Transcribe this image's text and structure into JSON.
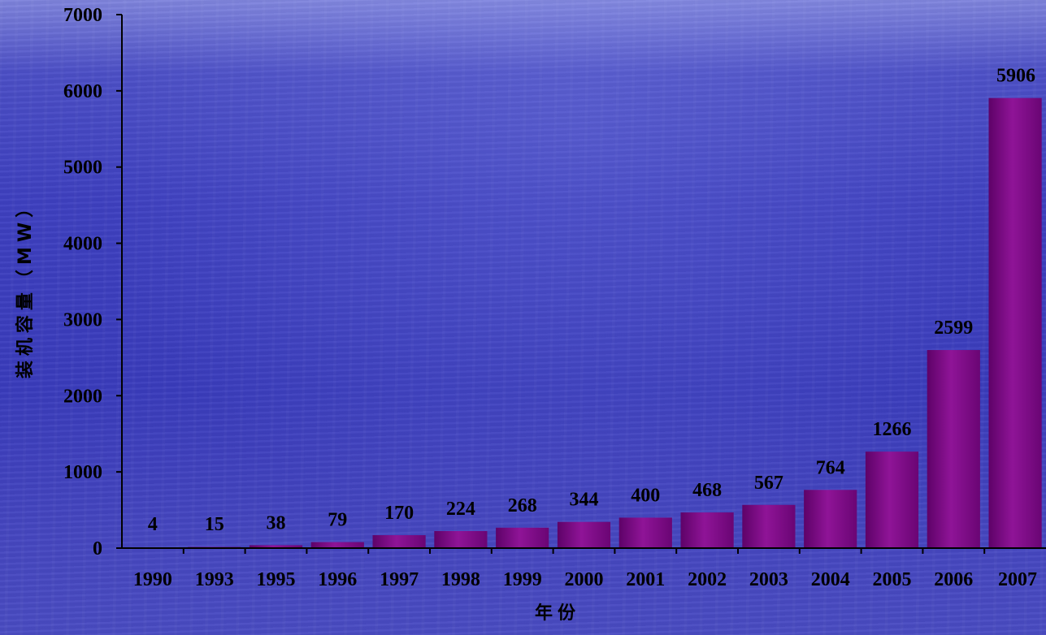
{
  "chart_data": {
    "type": "bar",
    "categories": [
      "1990",
      "1993",
      "1995",
      "1996",
      "1997",
      "1998",
      "1999",
      "2000",
      "2001",
      "2002",
      "2003",
      "2004",
      "2005",
      "2006",
      "2007"
    ],
    "values": [
      4,
      15,
      38,
      79,
      170,
      224,
      268,
      344,
      400,
      468,
      567,
      764,
      1266,
      2599,
      5906
    ],
    "data_labels": [
      "4",
      "15",
      "38",
      "79",
      "170",
      "224",
      "268",
      "344",
      "400",
      "468",
      "567",
      "764",
      "1266",
      "2599",
      "5906"
    ],
    "title": "",
    "xlabel": "年份",
    "ylabel": "装机容量（MW）",
    "ylim": [
      0,
      7000
    ],
    "yticks": [
      "0",
      "1000",
      "2000",
      "3000",
      "4000",
      "5000",
      "6000",
      "7000"
    ],
    "grid": false,
    "bar_color": "#7a0a82",
    "bar_color_light": "#a020a8",
    "axis_color": "#000000"
  }
}
